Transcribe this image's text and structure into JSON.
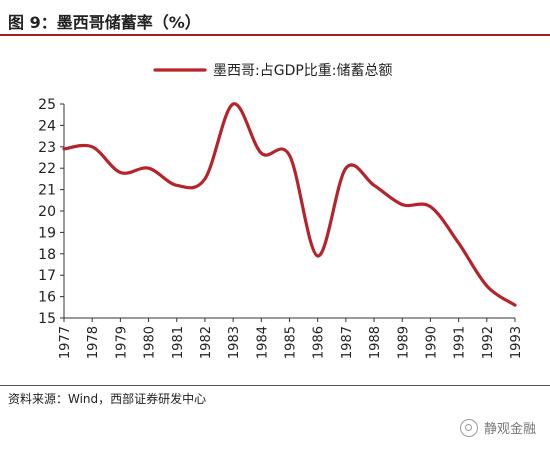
{
  "header": {
    "title": "图 9：墨西哥储蓄率（%）"
  },
  "chart_data": {
    "type": "line",
    "title": "",
    "xlabel": "",
    "ylabel": "",
    "ylim": [
      15,
      25
    ],
    "yticks": [
      15,
      16,
      17,
      18,
      19,
      20,
      21,
      22,
      23,
      24,
      25
    ],
    "categories": [
      "1977",
      "1978",
      "1979",
      "1980",
      "1981",
      "1982",
      "1983",
      "1984",
      "1985",
      "1986",
      "1987",
      "1988",
      "1989",
      "1990",
      "1991",
      "1992",
      "1993"
    ],
    "legend_position": "top",
    "grid": false,
    "series": [
      {
        "name": "墨西哥:占GDP比重:储蓄总额",
        "color": "#b5232b",
        "values": [
          22.9,
          23.0,
          21.8,
          22.0,
          21.2,
          21.5,
          25.0,
          22.7,
          22.6,
          17.9,
          22.0,
          21.2,
          20.3,
          20.2,
          18.5,
          16.5,
          15.6
        ]
      }
    ]
  },
  "footer": {
    "source": "资料来源：Wind，西部证券研发中心",
    "watermark": "静观金融"
  }
}
